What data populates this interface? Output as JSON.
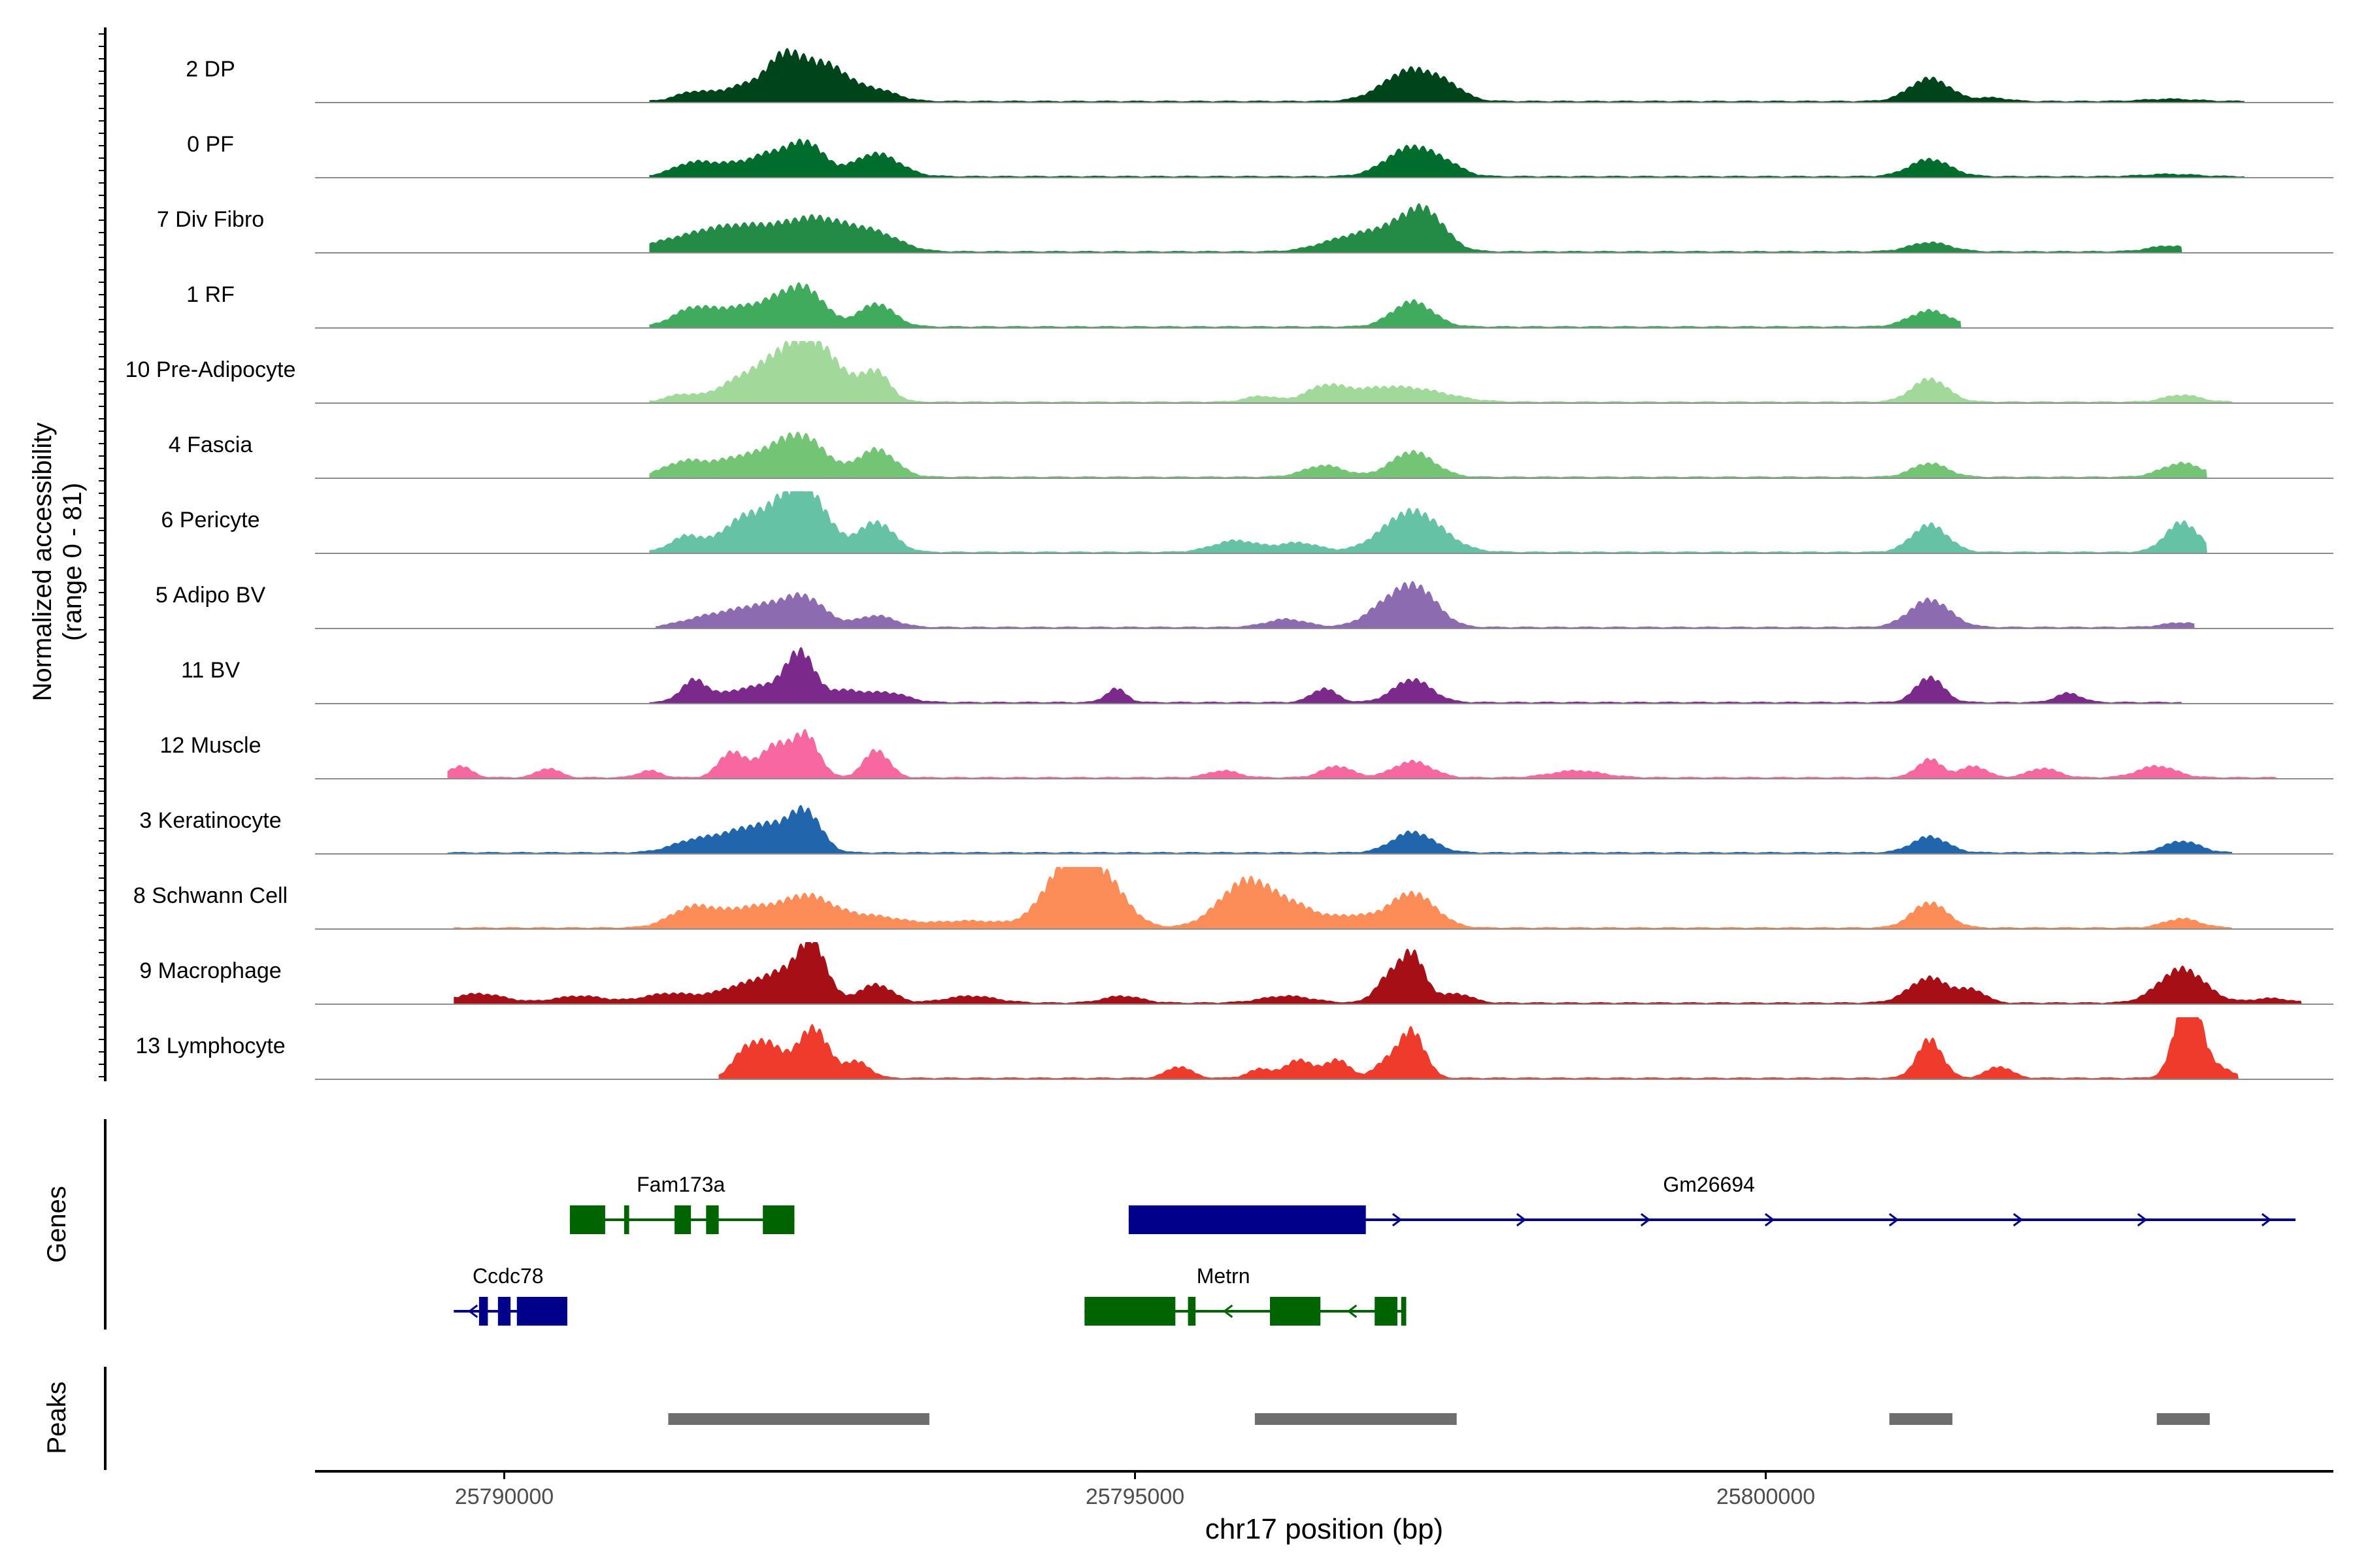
{
  "chart_data": {
    "type": "area",
    "title": "",
    "y_axis_title": "Normalized accessibility",
    "y_axis_subtitle": "(range 0 - 81)",
    "ylim": [
      0,
      81
    ],
    "x_axis_title": "chr17 position (bp)",
    "xlim": [
      25788500,
      25804500
    ],
    "x_ticks": [
      25790000,
      25795000,
      25800000
    ],
    "x_tick_labels": [
      "25790000",
      "25795000",
      "25800000"
    ],
    "tracks": [
      {
        "label": "2 DP",
        "color": "#00441b",
        "peaks": [
          [
            25791500,
            8,
            140
          ],
          [
            25791800,
            6,
            140
          ],
          [
            25792000,
            11,
            160
          ],
          [
            25792200,
            18,
            110
          ],
          [
            25792400,
            32,
            200
          ],
          [
            25792650,
            12,
            130
          ],
          [
            25792950,
            10,
            160
          ],
          [
            25797200,
            28,
            220
          ],
          [
            25797500,
            6,
            120
          ],
          [
            25801300,
            20,
            160
          ],
          [
            25801800,
            3,
            120
          ],
          [
            25803200,
            2,
            200
          ]
        ],
        "span": [
          25791150,
          25803800
        ]
      },
      {
        "label": "0 PF",
        "color": "#006d2c",
        "peaks": [
          [
            25791500,
            12,
            160
          ],
          [
            25791800,
            8,
            140
          ],
          [
            25792100,
            18,
            150
          ],
          [
            25792400,
            28,
            140
          ],
          [
            25792950,
            20,
            180
          ],
          [
            25797200,
            26,
            200
          ],
          [
            25797500,
            5,
            120
          ],
          [
            25801300,
            15,
            160
          ],
          [
            25803200,
            2,
            200
          ]
        ],
        "span": [
          25791150,
          25803800
        ]
      },
      {
        "label": "7 Div Fibro",
        "color": "#238b45",
        "peaks": [
          [
            25791300,
            8,
            200
          ],
          [
            25791650,
            14,
            200
          ],
          [
            25792000,
            18,
            220
          ],
          [
            25792400,
            20,
            200
          ],
          [
            25792700,
            16,
            220
          ],
          [
            25793000,
            10,
            180
          ],
          [
            25796600,
            7,
            200
          ],
          [
            25797000,
            18,
            240
          ],
          [
            25797300,
            30,
            160
          ],
          [
            25801300,
            8,
            160
          ],
          [
            25803200,
            5,
            160
          ]
        ],
        "span": [
          25791150,
          25803300
        ]
      },
      {
        "label": "1 RF",
        "color": "#41ab5d",
        "peaks": [
          [
            25791500,
            16,
            160
          ],
          [
            25791850,
            14,
            160
          ],
          [
            25792150,
            18,
            150
          ],
          [
            25792400,
            30,
            150
          ],
          [
            25792950,
            20,
            140
          ],
          [
            25797200,
            22,
            160
          ],
          [
            25801300,
            14,
            160
          ]
        ],
        "span": [
          25791150,
          25801550
        ]
      },
      {
        "label": "10 Pre-Adipocyte",
        "color": "#a1d99b",
        "peaks": [
          [
            25791400,
            6,
            120
          ],
          [
            25791850,
            16,
            180
          ],
          [
            25792150,
            20,
            180
          ],
          [
            25792450,
            50,
            220
          ],
          [
            25792950,
            24,
            110
          ],
          [
            25796000,
            5,
            120
          ],
          [
            25796500,
            12,
            150
          ],
          [
            25796900,
            10,
            250
          ],
          [
            25797300,
            8,
            250
          ],
          [
            25801300,
            20,
            140
          ],
          [
            25803300,
            6,
            140
          ]
        ],
        "span": [
          25791150,
          25803700
        ]
      },
      {
        "label": "4 Fascia",
        "color": "#74c476",
        "peaks": [
          [
            25791450,
            14,
            180
          ],
          [
            25791850,
            14,
            160
          ],
          [
            25792150,
            18,
            160
          ],
          [
            25792400,
            30,
            170
          ],
          [
            25792950,
            24,
            150
          ],
          [
            25796500,
            10,
            160
          ],
          [
            25797200,
            22,
            170
          ],
          [
            25801300,
            12,
            140
          ],
          [
            25803300,
            12,
            160
          ]
        ],
        "span": [
          25791150,
          25803500
        ]
      },
      {
        "label": "6 Pericyte",
        "color": "#66c2a4",
        "peaks": [
          [
            25791450,
            14,
            130
          ],
          [
            25791850,
            20,
            150
          ],
          [
            25792150,
            28,
            200
          ],
          [
            25792400,
            46,
            170
          ],
          [
            25792950,
            26,
            140
          ],
          [
            25795800,
            10,
            180
          ],
          [
            25796300,
            8,
            160
          ],
          [
            25797200,
            36,
            230
          ],
          [
            25801300,
            24,
            140
          ],
          [
            25803300,
            26,
            130
          ]
        ],
        "span": [
          25791150,
          25803500
        ]
      },
      {
        "label": "5 Adipo BV",
        "color": "#8c6bb1",
        "peaks": [
          [
            25791600,
            8,
            200
          ],
          [
            25791950,
            12,
            200
          ],
          [
            25792200,
            10,
            200
          ],
          [
            25792400,
            20,
            160
          ],
          [
            25792950,
            10,
            150
          ],
          [
            25796200,
            7,
            160
          ],
          [
            25797000,
            18,
            170
          ],
          [
            25797250,
            30,
            160
          ],
          [
            25801300,
            24,
            160
          ],
          [
            25803300,
            4,
            150
          ]
        ],
        "span": [
          25791200,
          25803400
        ]
      },
      {
        "label": "11 BV",
        "color": "#7b2a8b",
        "peaks": [
          [
            25791500,
            18,
            100
          ],
          [
            25791900,
            10,
            220
          ],
          [
            25792150,
            8,
            160
          ],
          [
            25792350,
            40,
            110
          ],
          [
            25792700,
            10,
            150
          ],
          [
            25793050,
            8,
            150
          ],
          [
            25794850,
            12,
            80
          ],
          [
            25796500,
            12,
            100
          ],
          [
            25797200,
            20,
            150
          ],
          [
            25801300,
            22,
            110
          ],
          [
            25802400,
            8,
            100
          ]
        ],
        "span": [
          25791150,
          25803300
        ]
      },
      {
        "label": "12 Muscle",
        "color": "#f768a1",
        "peaks": [
          [
            25789650,
            10,
            90
          ],
          [
            25790350,
            8,
            90
          ],
          [
            25791150,
            6,
            90
          ],
          [
            25791800,
            22,
            100
          ],
          [
            25792150,
            28,
            130
          ],
          [
            25792400,
            34,
            100
          ],
          [
            25792950,
            24,
            100
          ],
          [
            25795700,
            6,
            120
          ],
          [
            25796600,
            10,
            120
          ],
          [
            25797200,
            14,
            150
          ],
          [
            25798500,
            6,
            200
          ],
          [
            25801300,
            16,
            100
          ],
          [
            25801650,
            10,
            100
          ],
          [
            25802200,
            8,
            120
          ],
          [
            25803100,
            10,
            150
          ]
        ],
        "span": [
          25789550,
          25804050
        ]
      },
      {
        "label": "3 Keratinocyte",
        "color": "#2166ac",
        "peaks": [
          [
            25791500,
            10,
            180
          ],
          [
            25791850,
            14,
            180
          ],
          [
            25792150,
            20,
            180
          ],
          [
            25792400,
            30,
            120
          ],
          [
            25797200,
            18,
            160
          ],
          [
            25801300,
            14,
            140
          ],
          [
            25803300,
            10,
            140
          ]
        ],
        "span": [
          25789550,
          25803700
        ]
      },
      {
        "label": "8 Schwann Cell",
        "color": "#fc8d59",
        "peaks": [
          [
            25791500,
            18,
            180
          ],
          [
            25791950,
            16,
            200
          ],
          [
            25792400,
            26,
            200
          ],
          [
            25792900,
            10,
            250
          ],
          [
            25793700,
            6,
            300
          ],
          [
            25794450,
            50,
            180
          ],
          [
            25794750,
            40,
            180
          ],
          [
            25795900,
            42,
            220
          ],
          [
            25796300,
            12,
            150
          ],
          [
            25796700,
            10,
            200
          ],
          [
            25797200,
            30,
            180
          ],
          [
            25801300,
            22,
            140
          ],
          [
            25803300,
            8,
            140
          ]
        ],
        "span": [
          25789600,
          25803700
        ]
      },
      {
        "label": "9 Macrophage",
        "color": "#a50f15",
        "peaks": [
          [
            25789800,
            8,
            200
          ],
          [
            25790600,
            6,
            200
          ],
          [
            25791300,
            8,
            200
          ],
          [
            25791900,
            14,
            220
          ],
          [
            25792300,
            26,
            200
          ],
          [
            25792450,
            36,
            100
          ],
          [
            25792950,
            16,
            130
          ],
          [
            25793700,
            6,
            200
          ],
          [
            25794900,
            6,
            150
          ],
          [
            25796200,
            6,
            200
          ],
          [
            25797000,
            20,
            100
          ],
          [
            25797200,
            42,
            100
          ],
          [
            25797550,
            8,
            120
          ],
          [
            25801300,
            22,
            160
          ],
          [
            25801650,
            10,
            100
          ],
          [
            25803300,
            30,
            180
          ],
          [
            25804000,
            4,
            150
          ]
        ],
        "span": [
          25789600,
          25804250
        ]
      },
      {
        "label": "13 Lymphocyte",
        "color": "#ef3b2c",
        "peaks": [
          [
            25791900,
            20,
            100
          ],
          [
            25792100,
            28,
            120
          ],
          [
            25792450,
            44,
            120
          ],
          [
            25792800,
            14,
            100
          ],
          [
            25795350,
            10,
            100
          ],
          [
            25796000,
            8,
            100
          ],
          [
            25796300,
            16,
            100
          ],
          [
            25796600,
            16,
            100
          ],
          [
            25797000,
            14,
            100
          ],
          [
            25797200,
            40,
            100
          ],
          [
            25801300,
            34,
            100
          ],
          [
            25801850,
            10,
            100
          ],
          [
            25803350,
            80,
            100
          ],
          [
            25803600,
            8,
            100
          ]
        ],
        "span": [
          25791700,
          25803750
        ]
      }
    ],
    "genes": [
      {
        "name": "Fam173a",
        "strand": "-",
        "color": "#006400",
        "row": 1,
        "start": 25790520,
        "end": 25792300,
        "exons": [
          [
            25790520,
            25790800
          ],
          [
            25790950,
            25790990
          ],
          [
            25791350,
            25791480
          ],
          [
            25791600,
            25791700
          ],
          [
            25792050,
            25792300
          ]
        ]
      },
      {
        "name": "Gm26694",
        "strand": "+",
        "color": "#00008b",
        "row": 1,
        "start": 25794950,
        "end": 25804200,
        "exons": [
          [
            25794950,
            25796830
          ]
        ]
      },
      {
        "name": "Ccdc78",
        "strand": "-",
        "color": "#00008b",
        "row": 2,
        "start": 25789600,
        "end": 25790500,
        "exons": [
          [
            25789800,
            25789870
          ],
          [
            25789950,
            25790050
          ],
          [
            25790100,
            25790500
          ]
        ]
      },
      {
        "name": "Metrn",
        "strand": "-",
        "color": "#006400",
        "row": 2,
        "start": 25794600,
        "end": 25797150,
        "exons": [
          [
            25794600,
            25795320
          ],
          [
            25795420,
            25795480
          ],
          [
            25796070,
            25796470
          ],
          [
            25796900,
            25797080
          ],
          [
            25797110,
            25797150
          ]
        ]
      }
    ],
    "peak_regions": [
      [
        25791300,
        25793370
      ],
      [
        25795950,
        25797550
      ],
      [
        25800980,
        25801480
      ],
      [
        25803100,
        25803520
      ]
    ],
    "panel_labels": {
      "genes": "Genes",
      "peaks": "Peaks"
    }
  }
}
